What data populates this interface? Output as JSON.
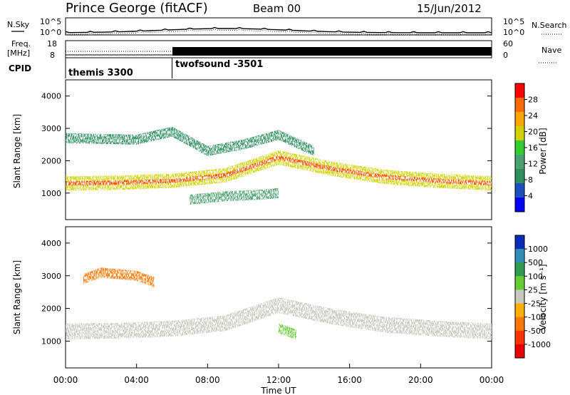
{
  "header": {
    "station": "Prince George (fitACF)",
    "beam": "Beam 00",
    "date": "15/Jun/2012"
  },
  "noise_panel": {
    "left_label": "N.Sky",
    "right_label": "N.Search",
    "left_ticks": [
      "10^5",
      "10^0"
    ],
    "right_ticks": [
      "10^5",
      "10^0"
    ]
  },
  "freq_panel": {
    "left_label_1": "Freq.",
    "left_label_2": "[MHz]",
    "right_label": "Nave",
    "left_ticks": [
      "18",
      "8"
    ],
    "right_ticks": [
      "60",
      "0"
    ]
  },
  "cpid": {
    "label": "CPID",
    "segments": [
      {
        "name": "themis 3300",
        "start_hour": 0,
        "end_hour": 6
      },
      {
        "name": "twofsound -3501",
        "start_hour": 6,
        "end_hour": 24
      }
    ]
  },
  "x_axis": {
    "label": "Time UT",
    "ticks": [
      "00:00",
      "04:00",
      "08:00",
      "12:00",
      "16:00",
      "20:00",
      "00:00"
    ]
  },
  "power_colorbar": {
    "label": "Power [dB]",
    "ticks": [
      "28",
      "24",
      "20",
      "16",
      "12",
      "8",
      "4"
    ],
    "colors": [
      "#ff0000",
      "#ff6a00",
      "#ffa500",
      "#cfd200",
      "#33cc33",
      "#4aa070",
      "#2e8f5e",
      "#1e4fbf",
      "#0000ff"
    ]
  },
  "velocity_colorbar": {
    "label": "Velocity [m s⁻¹]",
    "ticks": [
      "1000",
      "500",
      "100",
      "25",
      "-25",
      "-100",
      "-500",
      "-1000"
    ],
    "colors": [
      "#0a2ab8",
      "#2f8fb8",
      "#2e9b4e",
      "#66cc33",
      "#c8c8c0",
      "#ffb000",
      "#ff7700",
      "#ff3300",
      "#e60000"
    ]
  },
  "chart_data": [
    {
      "type": "heatmap",
      "title": "Power",
      "xlabel": "",
      "ylabel": "Slant Range [km]",
      "xlim": [
        0,
        24
      ],
      "ylim": [
        180,
        4500
      ],
      "yticks": [
        1000,
        2000,
        3000,
        4000
      ],
      "grid": false,
      "bands": [
        {
          "hours": [
            0,
            3,
            6,
            9,
            12,
            15,
            18,
            21,
            24
          ],
          "range_km": [
            1300,
            1320,
            1380,
            1550,
            2100,
            1750,
            1500,
            1380,
            1300
          ],
          "power_db": 22
        },
        {
          "hours": [
            0,
            4,
            6,
            8,
            10,
            12,
            14
          ],
          "range_km": [
            2700,
            2650,
            2900,
            2300,
            2500,
            2800,
            2300
          ],
          "power_db": 12
        },
        {
          "hours": [
            7,
            9,
            11,
            12
          ],
          "range_km": [
            800,
            900,
            950,
            1000
          ],
          "power_db": 14
        }
      ]
    },
    {
      "type": "heatmap",
      "title": "Velocity",
      "xlabel": "Time UT",
      "ylabel": "Slant Range [km]",
      "xlim": [
        0,
        24
      ],
      "ylim": [
        180,
        4500
      ],
      "yticks": [
        1000,
        2000,
        3000,
        4000
      ],
      "grid": false,
      "dominant_velocity_ms": 0,
      "bands": [
        {
          "hours": [
            0,
            3,
            6,
            9,
            12,
            15,
            18,
            21,
            24
          ],
          "range_km": [
            1300,
            1320,
            1380,
            1550,
            2100,
            1750,
            1500,
            1380,
            1300
          ],
          "velocity_ms": 0
        },
        {
          "hours": [
            12,
            12.5,
            13
          ],
          "range_km": [
            1400,
            1300,
            1200
          ],
          "velocity_ms": 80
        },
        {
          "hours": [
            1,
            2,
            4,
            5
          ],
          "range_km": [
            2900,
            3100,
            3000,
            2800
          ],
          "velocity_ms": -150
        }
      ]
    }
  ]
}
